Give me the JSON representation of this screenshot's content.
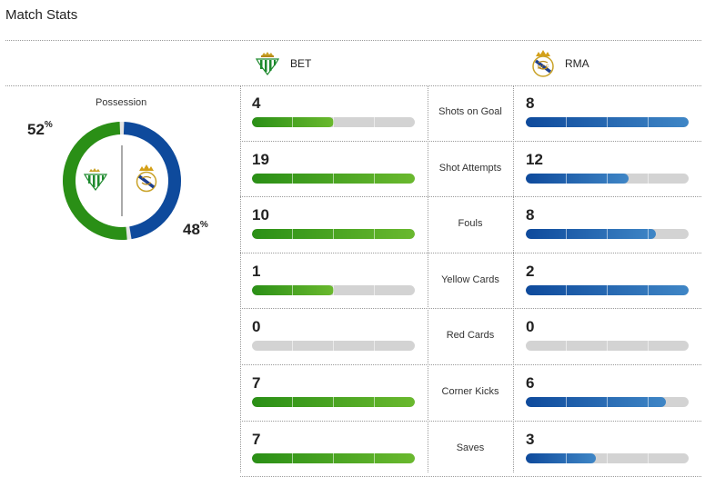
{
  "page_title": "Match Stats",
  "colors": {
    "home": "#2a8f16",
    "away": "#0e4a9c",
    "track": "#d3d3d3"
  },
  "teams": {
    "home": {
      "abbr": "BET",
      "crest_icon": "real-betis-crest-icon"
    },
    "away": {
      "abbr": "RMA",
      "crest_icon": "real-madrid-crest-icon"
    }
  },
  "possession": {
    "label": "Possession",
    "home_pct": 52,
    "away_pct": 48,
    "pct_symbol": "%"
  },
  "stats": [
    {
      "label": "Shots on Goal",
      "home": 4,
      "away": 8,
      "home_fill": 0.5,
      "away_fill": 1.0
    },
    {
      "label": "Shot Attempts",
      "home": 19,
      "away": 12,
      "home_fill": 1.0,
      "away_fill": 0.63
    },
    {
      "label": "Fouls",
      "home": 10,
      "away": 8,
      "home_fill": 1.0,
      "away_fill": 0.8
    },
    {
      "label": "Yellow Cards",
      "home": 1,
      "away": 2,
      "home_fill": 0.5,
      "away_fill": 1.0
    },
    {
      "label": "Red Cards",
      "home": 0,
      "away": 0,
      "home_fill": 0,
      "away_fill": 0
    },
    {
      "label": "Corner Kicks",
      "home": 7,
      "away": 6,
      "home_fill": 1.0,
      "away_fill": 0.86
    },
    {
      "label": "Saves",
      "home": 7,
      "away": 3,
      "home_fill": 1.0,
      "away_fill": 0.43
    }
  ]
}
